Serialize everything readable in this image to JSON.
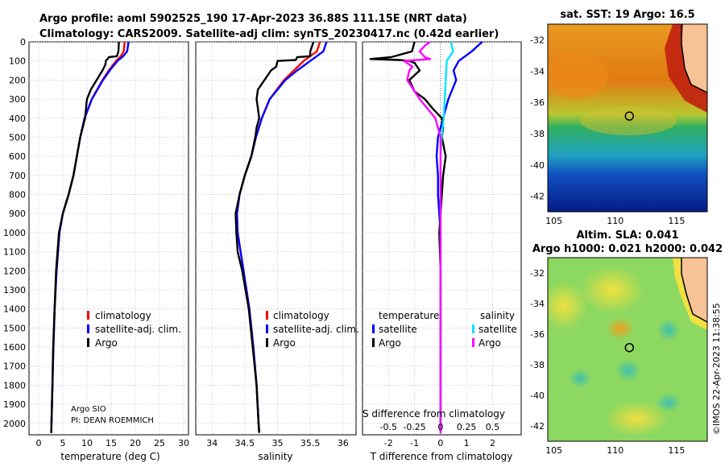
{
  "titles": {
    "line1": "Argo profile: aoml 5902525_190 17-Apr-2023 36.88S 111.15E (NRT data)",
    "line2": "Climatology: CARS2009. Satellite-adj clim: synTS_20230417.nc (0.42d earlier)",
    "sst_title": "sat. SST: 19 Argo: 16.5",
    "sla_title1": "Altim. SLA: 0.041",
    "sla_title2": "Argo h1000: 0.021 h2000: 0.042",
    "credit_vertical": "©IMOS 22-Apr-2023 11:38:55",
    "argo_info1": "Argo SIO",
    "argo_info2": "PI: DEAN ROEMMICH"
  },
  "colors": {
    "climatology": "#ff0000",
    "satellite_adj": "#0000ff",
    "argo": "#000000",
    "sat_salinity": "#00e5ff",
    "argo_salinity": "#ff00ff"
  },
  "legends": {
    "temp": [
      "climatology",
      "satellite-adj. clim.",
      "Argo"
    ],
    "sal": [
      "climatology",
      "satellite-adj. clim.",
      "Argo"
    ],
    "diff_temp_header": "temperature",
    "diff_sal_header": "salinity",
    "diff_items": [
      "satellite",
      "Argo"
    ]
  },
  "chart_data": [
    {
      "type": "line",
      "name": "temperature",
      "xlabel": "temperature (deg C)",
      "xlim": [
        -2,
        31
      ],
      "ylim": [
        2060,
        0
      ],
      "xticks": [
        0,
        5,
        10,
        15,
        20,
        25,
        30
      ],
      "yticks": [
        0,
        100,
        200,
        300,
        400,
        500,
        600,
        700,
        800,
        900,
        1000,
        1100,
        1200,
        1300,
        1400,
        1500,
        1600,
        1700,
        1800,
        1900,
        2000
      ],
      "series": [
        {
          "name": "climatology",
          "depth": [
            0,
            50,
            75,
            100,
            150,
            200,
            300,
            400,
            500,
            600,
            700,
            800,
            900,
            1000,
            1200,
            1400,
            1600,
            1800,
            2000,
            2050
          ],
          "values": [
            17.8,
            17.6,
            17.0,
            16.0,
            14.5,
            13.2,
            11.0,
            9.5,
            8.6,
            7.9,
            7.2,
            6.2,
            5.0,
            4.3,
            3.7,
            3.3,
            3.05,
            2.85,
            2.65,
            2.6
          ]
        },
        {
          "name": "satellite-adj. clim.",
          "depth": [
            0,
            50,
            75,
            100,
            150,
            200,
            300,
            400,
            500,
            600,
            700,
            800,
            900,
            1000,
            1200,
            1400,
            1600,
            1800,
            2000,
            2050
          ],
          "values": [
            18.6,
            18.3,
            17.5,
            16.3,
            14.7,
            13.3,
            11.0,
            9.5,
            8.6,
            7.9,
            7.2,
            6.2,
            5.0,
            4.3,
            3.7,
            3.3,
            3.05,
            2.85,
            2.65,
            2.6
          ]
        },
        {
          "name": "Argo",
          "depth": [
            0,
            50,
            75,
            80,
            90,
            95,
            100,
            120,
            150,
            200,
            250,
            300,
            320,
            350,
            400,
            450,
            500,
            600,
            700,
            800,
            900,
            1000,
            1100,
            1200,
            1400,
            1600,
            1800,
            2000,
            2050
          ],
          "values": [
            16.6,
            16.5,
            16.2,
            14.5,
            14.3,
            14.0,
            13.9,
            13.8,
            13.2,
            12.0,
            10.8,
            10.0,
            9.9,
            9.8,
            9.6,
            9.1,
            8.6,
            7.9,
            7.2,
            6.2,
            5.0,
            4.2,
            3.9,
            3.6,
            3.3,
            3.0,
            2.85,
            2.65,
            2.6
          ]
        }
      ]
    },
    {
      "type": "line",
      "name": "salinity",
      "xlabel": "salinity",
      "xlim": [
        33.75,
        36.2
      ],
      "ylim": [
        2060,
        0
      ],
      "xticks": [
        34,
        34.5,
        35,
        35.5,
        36
      ],
      "series": [
        {
          "name": "climatology",
          "depth": [
            0,
            50,
            100,
            150,
            200,
            300,
            400,
            500,
            600,
            700,
            800,
            900,
            1000,
            1200,
            1400,
            1600,
            1800,
            2000,
            2050
          ],
          "values": [
            35.65,
            35.6,
            35.4,
            35.25,
            35.1,
            34.88,
            34.76,
            34.67,
            34.6,
            34.5,
            34.42,
            34.38,
            34.39,
            34.48,
            34.57,
            34.63,
            34.68,
            34.71,
            34.72
          ]
        },
        {
          "name": "satellite-adj. clim.",
          "depth": [
            0,
            50,
            100,
            150,
            200,
            300,
            400,
            500,
            600,
            700,
            800,
            900,
            1000,
            1200,
            1400,
            1600,
            1800,
            2000,
            2050
          ],
          "values": [
            35.75,
            35.7,
            35.5,
            35.3,
            35.12,
            34.88,
            34.76,
            34.67,
            34.6,
            34.5,
            34.42,
            34.38,
            34.39,
            34.48,
            34.57,
            34.63,
            34.68,
            34.71,
            34.72
          ]
        },
        {
          "name": "Argo",
          "depth": [
            0,
            50,
            75,
            80,
            95,
            100,
            130,
            150,
            200,
            250,
            300,
            350,
            400,
            450,
            500,
            600,
            700,
            800,
            900,
            1000,
            1100,
            1200,
            1400,
            1600,
            1800,
            2000,
            2050
          ],
          "values": [
            35.55,
            35.5,
            35.5,
            35.3,
            35.28,
            35.0,
            34.98,
            34.9,
            34.8,
            34.7,
            34.68,
            34.7,
            34.72,
            34.68,
            34.66,
            34.6,
            34.5,
            34.42,
            34.36,
            34.37,
            34.39,
            34.46,
            34.56,
            34.62,
            34.68,
            34.71,
            34.72
          ]
        }
      ]
    },
    {
      "type": "line",
      "name": "difference",
      "xlabel": "T difference from climatology",
      "xlabel_top": "S difference from climatology",
      "xlim": [
        -3,
        3.1
      ],
      "ylim": [
        2060,
        0
      ],
      "xticks": [
        -2,
        -1,
        0,
        1,
        2
      ],
      "xticks_S": [
        -0.5,
        -0.25,
        0,
        0.25,
        0.5
      ],
      "xticks_S_labels": [
        "-0.5",
        "-0.25",
        "0",
        "0.25",
        "0.5"
      ],
      "series": [
        {
          "name": "temperature satellite",
          "depth": [
            0,
            50,
            100,
            150,
            200,
            300,
            400,
            500,
            600,
            700,
            800,
            900,
            1000,
            1200,
            1500,
            2000,
            2050
          ],
          "values": [
            1.6,
            1.2,
            0.7,
            0.5,
            0.6,
            0.3,
            0.1,
            -0.1,
            -0.15,
            -0.1,
            -0.1,
            -0.05,
            0,
            0,
            0,
            0,
            0
          ]
        },
        {
          "name": "temperature Argo",
          "depth": [
            0,
            50,
            80,
            90,
            95,
            100,
            110,
            150,
            200,
            260,
            300,
            350,
            400,
            450,
            500,
            600,
            700,
            800,
            900,
            1000,
            1200,
            1500,
            1800,
            2000,
            2050
          ],
          "values": [
            -1.0,
            -1.1,
            -1.9,
            -2.7,
            -1.6,
            -1.2,
            -1.0,
            -0.8,
            -1.2,
            -1.0,
            -0.6,
            -0.3,
            0.05,
            0.1,
            0.05,
            0.2,
            0.1,
            0.05,
            0,
            -0.05,
            0,
            0,
            0,
            0,
            0
          ]
        },
        {
          "name": "salinity satellite",
          "depth": [
            0,
            50,
            100,
            200,
            300,
            400,
            500,
            600,
            700,
            800,
            900,
            1000,
            1200,
            1500,
            2000,
            2050
          ],
          "values": [
            0.1,
            0.12,
            0.06,
            0.05,
            0.04,
            0.03,
            0.01,
            0,
            0,
            0,
            0,
            0,
            0,
            0,
            0,
            0
          ]
        },
        {
          "name": "salinity Argo",
          "depth": [
            0,
            20,
            50,
            80,
            90,
            100,
            130,
            150,
            200,
            300,
            400,
            500,
            600,
            700,
            800,
            900,
            1000,
            1200,
            1500,
            1800,
            2000,
            2050
          ],
          "values": [
            -0.1,
            -0.15,
            -0.2,
            -0.15,
            -0.1,
            -0.35,
            -0.27,
            -0.3,
            -0.32,
            -0.2,
            -0.05,
            0,
            0,
            0,
            0,
            0,
            0,
            0,
            0,
            0,
            0,
            0
          ]
        }
      ]
    },
    {
      "type": "heatmap",
      "name": "satellite SST map",
      "title": "sat. SST: 19 Argo: 16.5",
      "xlim": [
        104.5,
        117.5
      ],
      "ylim": [
        -43,
        -31
      ],
      "xticks": [
        105,
        110,
        115
      ],
      "yticks": [
        -32,
        -34,
        -36,
        -38,
        -40,
        -42
      ],
      "argo_position": {
        "lon": 111.15,
        "lat": -36.88
      }
    },
    {
      "type": "heatmap",
      "name": "altimetry SLA map",
      "title": "Altim. SLA: 0.041",
      "xlim": [
        104.5,
        117.5
      ],
      "ylim": [
        -43,
        -31
      ],
      "xticks": [
        105,
        110,
        115
      ],
      "yticks": [
        -32,
        -34,
        -36,
        -38,
        -40,
        -42
      ],
      "argo_position": {
        "lon": 111.15,
        "lat": -36.88
      }
    }
  ]
}
